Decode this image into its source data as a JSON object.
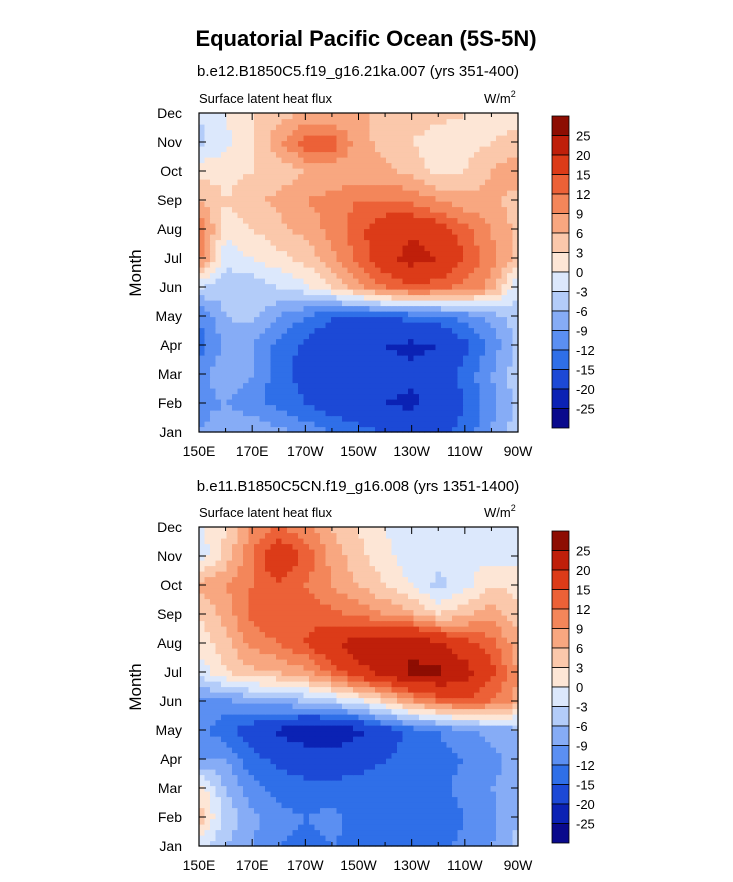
{
  "figure": {
    "title": "Equatorial Pacific Ocean (5S-5N)",
    "colors": [
      "#0a0a8c",
      "#0b22b4",
      "#1c49d6",
      "#2f6fe8",
      "#5b8ff2",
      "#86acf6",
      "#b3ccf9",
      "#dce8fc",
      "#fde6d6",
      "#fbc8ab",
      "#f8a780",
      "#f3865a",
      "#ec6137",
      "#dc3b18",
      "#bf1f0a",
      "#8d0d02"
    ],
    "colorbar_labels": [
      "-25",
      "-20",
      "-15",
      "-12",
      "-9",
      "-6",
      "-3",
      "0",
      "3",
      "6",
      "9",
      "12",
      "15",
      "20",
      "25"
    ]
  },
  "chart_data": [
    {
      "type": "heatmap",
      "title": "b.e12.B1850C5.f19_g16.21ka.007 (yrs 351-400)",
      "left_label": "Surface latent heat flux",
      "right_label": "W/m",
      "right_label_sup": "2",
      "ylabel": "Month",
      "xlabel": "",
      "x_ticks": [
        "150E",
        "170E",
        "170W",
        "150W",
        "130W",
        "110W",
        "90W"
      ],
      "y_ticks": [
        "Jan",
        "Feb",
        "Mar",
        "Apr",
        "May",
        "Jun",
        "Jul",
        "Aug",
        "Sep",
        "Oct",
        "Nov",
        "Dec"
      ],
      "x": [
        150,
        160,
        170,
        180,
        190,
        200,
        210,
        220,
        230,
        240,
        250,
        260,
        270
      ],
      "levels": [
        -25,
        -20,
        -15,
        -12,
        -9,
        -6,
        -3,
        0,
        3,
        6,
        9,
        12,
        15,
        20,
        25
      ],
      "values": [
        [
          -9,
          -7,
          -6,
          -8,
          -10,
          -12,
          -14,
          -15,
          -16,
          -16,
          -14,
          -9,
          -4
        ],
        [
          -10,
          -9,
          -11,
          -13,
          -15,
          -17,
          -18,
          -20,
          -21,
          -18,
          -15,
          -10,
          -5
        ],
        [
          -10,
          -7,
          -9,
          -14,
          -16,
          -17,
          -18,
          -18,
          -19,
          -17,
          -14,
          -9,
          -4
        ],
        [
          -14,
          -8,
          -9,
          -13,
          -16,
          -18,
          -19,
          -20,
          -21,
          -20,
          -16,
          -11,
          -5
        ],
        [
          -12,
          -6,
          -5,
          -9,
          -12,
          -15,
          -16,
          -15,
          -14,
          -13,
          -11,
          -8,
          -4
        ],
        [
          -3,
          -5,
          -5,
          -3,
          -1,
          3,
          8,
          12,
          14,
          13,
          11,
          8,
          -3
        ],
        [
          10,
          -2,
          0,
          2,
          4,
          8,
          13,
          18,
          22,
          20,
          15,
          10,
          5
        ],
        [
          12,
          1,
          3,
          5,
          7,
          10,
          14,
          18,
          19,
          17,
          13,
          9,
          5
        ],
        [
          6,
          3,
          5,
          7,
          9,
          10,
          12,
          12,
          11,
          9,
          7,
          7,
          4
        ],
        [
          2,
          2,
          3,
          4,
          6,
          7,
          7,
          7,
          5,
          2,
          3,
          6,
          9
        ],
        [
          -4,
          -1,
          3,
          8,
          14,
          14,
          7,
          5,
          3,
          1,
          2,
          3,
          4
        ],
        [
          -3,
          0,
          3,
          5,
          6,
          6,
          6,
          6,
          5,
          4,
          3,
          2,
          2
        ]
      ],
      "zlabel": "W/m2"
    },
    {
      "type": "heatmap",
      "title": "b.e11.B1850C5CN.f19_g16.008 (yrs 1351-1400)",
      "left_label": "Surface latent heat flux",
      "right_label": "W/m",
      "right_label_sup": "2",
      "ylabel": "Month",
      "xlabel": "",
      "x_ticks": [
        "150E",
        "170E",
        "170W",
        "150W",
        "130W",
        "110W",
        "90W"
      ],
      "y_ticks": [
        "Jan",
        "Feb",
        "Mar",
        "Apr",
        "May",
        "Jun",
        "Jul",
        "Aug",
        "Sep",
        "Oct",
        "Nov",
        "Dec"
      ],
      "x": [
        150,
        160,
        170,
        180,
        190,
        200,
        210,
        220,
        230,
        240,
        250,
        260,
        270
      ],
      "levels": [
        -25,
        -20,
        -15,
        -12,
        -9,
        -6,
        -3,
        0,
        3,
        6,
        9,
        12,
        15,
        20,
        25
      ],
      "values": [
        [
          -2,
          -6,
          -9,
          -12,
          -13,
          -12,
          -13,
          -15,
          -14,
          -13,
          -11,
          -9,
          -5
        ],
        [
          5,
          -4,
          -8,
          -11,
          -12,
          -11,
          -13,
          -14,
          -15,
          -14,
          -12,
          -10,
          -6
        ],
        [
          2,
          -6,
          -11,
          -13,
          -14,
          -14,
          -14,
          -14,
          -14,
          -13,
          -11,
          -9,
          -7
        ],
        [
          -9,
          -9,
          -14,
          -16,
          -17,
          -17,
          -16,
          -15,
          -14,
          -13,
          -12,
          -10,
          -8
        ],
        [
          -11,
          -14,
          -17,
          -21,
          -23,
          -24,
          -21,
          -17,
          -14,
          -12,
          -10,
          -8,
          -7
        ],
        [
          -10,
          -10,
          -8,
          -7,
          -6,
          -4,
          -1,
          3,
          8,
          12,
          14,
          12,
          8
        ],
        [
          -2,
          3,
          5,
          6,
          8,
          13,
          18,
          22,
          26,
          26,
          22,
          16,
          9
        ],
        [
          1,
          5,
          10,
          12,
          15,
          19,
          23,
          24,
          24,
          21,
          17,
          13,
          7
        ],
        [
          3,
          7,
          13,
          15,
          14,
          13,
          11,
          9,
          7,
          3,
          5,
          8,
          4
        ],
        [
          7,
          9,
          12,
          14,
          12,
          9,
          6,
          3,
          0,
          -4,
          -1,
          3,
          2
        ],
        [
          -2,
          4,
          12,
          20,
          14,
          8,
          4,
          1,
          -2,
          -2,
          -1,
          -1,
          -1
        ],
        [
          -1,
          3,
          9,
          12,
          10,
          6,
          3,
          0,
          -2,
          -2,
          -1,
          -2,
          -1
        ]
      ],
      "zlabel": "W/m2"
    }
  ]
}
